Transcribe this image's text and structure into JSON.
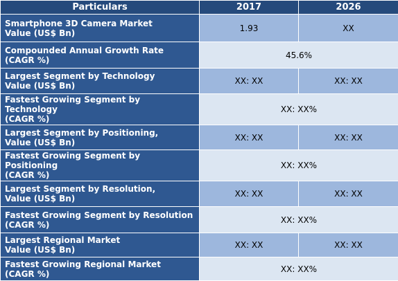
{
  "header": {
    "col0": "Particulars",
    "col1": "2017",
    "col2": "2026"
  },
  "rows": [
    {
      "label_line1": "Smartphone 3D Camera Market",
      "label_line2": "Value (US$ Bn)",
      "v2017": "1.93",
      "v2026": "XX"
    },
    {
      "label_line1": "Compounded Annual Growth Rate",
      "label_line2": "(CAGR %)",
      "merged": "45.6%"
    },
    {
      "label_line1": "Largest Segment by Technology",
      "label_line2": "Value (US$ Bn)",
      "v2017": "XX: XX",
      "v2026": "XX:  XX"
    },
    {
      "label_line1": "Fastest Growing Segment by",
      "label_line2": "Technology",
      "label_line3": "(CAGR %)",
      "merged": "XX:  XX%"
    },
    {
      "label_line1": "Largest Segment by Positioning,",
      "label_line2": "Value (US$ Bn)",
      "v2017": "XX: XX",
      "v2026": "XX:  XX"
    },
    {
      "label_line1": "Fastest Growing Segment by",
      "label_line2": "Positioning",
      "label_line3": "(CAGR %)",
      "merged": "XX:  XX%"
    },
    {
      "label_line1": "Largest Segment by Resolution,",
      "label_line2": "Value (US$ Bn)",
      "v2017": "XX: XX",
      "v2026": "XX:  XX"
    },
    {
      "label_line1": "Fastest Growing Segment by Resolution",
      "label_line2": "(CAGR %)",
      "merged": "XX:  XX%"
    },
    {
      "label_line1": "Largest Regional Market",
      "label_line2": "Value (US$ Bn)",
      "v2017": "XX: XX",
      "v2026": "XX: XX"
    },
    {
      "label_line1": "Fastest Growing Regional Market",
      "label_line2": "(CAGR %)",
      "merged": "XX: XX%"
    }
  ]
}
